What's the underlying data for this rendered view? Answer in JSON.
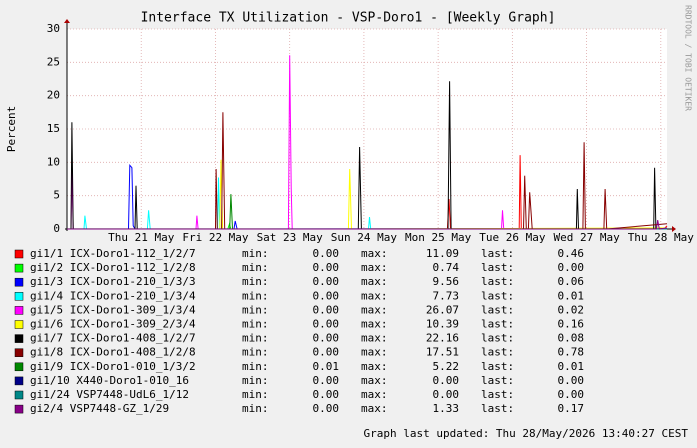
{
  "chart_data": {
    "type": "line",
    "title": "Interface TX Utilization - VSP-Doro1 - [Weekly Graph]",
    "y_label": "Percent",
    "side_label": "RRDTOOL / TOBI OETIKER",
    "footer": "Graph last updated: Thu 28/May/2026 13:40:27 CEST",
    "legend_labels": [
      "min:",
      "max:",
      "last:"
    ],
    "xlim": [
      0,
      194
    ],
    "xticks": [
      {
        "value": 24,
        "label": "Thu 21 May"
      },
      {
        "value": 48,
        "label": "Fri 22 May"
      },
      {
        "value": 72,
        "label": "Sat 23 May"
      },
      {
        "value": 96,
        "label": "Sun 24 May"
      },
      {
        "value": 120,
        "label": "Mon 25 May"
      },
      {
        "value": 144,
        "label": "Tue 26 May"
      },
      {
        "value": 168,
        "label": "Wed 27 May"
      },
      {
        "value": 192,
        "label": "Thu 28 May"
      }
    ],
    "ylim": [
      0,
      30
    ],
    "yticks": [
      0,
      5,
      10,
      15,
      20,
      25,
      30
    ],
    "grid": true,
    "series": [
      {
        "name": "gi1/1 ICX-Doro1-112_1/2/7",
        "color": "#ff0000",
        "min": "0.00",
        "max": "11.09",
        "last": "0.46",
        "x": [
          0,
          123,
          123.5,
          124,
          146.2,
          146.5,
          146.9,
          193,
          194
        ],
        "values": [
          0,
          0,
          4.5,
          0,
          0,
          11.09,
          0,
          0,
          0.46
        ]
      },
      {
        "name": "gi1/2 ICX-Doro1-112_1/2/8",
        "color": "#00ff00",
        "min": "0.00",
        "max": "0.74",
        "last": "0.00",
        "x": [
          0,
          52,
          52.5,
          53,
          194
        ],
        "values": [
          0,
          0,
          0.74,
          0,
          0
        ]
      },
      {
        "name": "gi1/3 ICX-Doro1-210_1/3/3",
        "color": "#0000ff",
        "min": "0.00",
        "max": "9.56",
        "last": "0.06",
        "x": [
          0,
          19.9,
          20.3,
          21,
          21.4,
          22,
          54,
          54.4,
          55,
          194
        ],
        "values": [
          0,
          0,
          9.56,
          9.2,
          0.5,
          0,
          0,
          1.2,
          0,
          0.06
        ]
      },
      {
        "name": "gi1/4 ICX-Doro1-210_1/3/4",
        "color": "#00ffff",
        "min": "0.00",
        "max": "7.73",
        "last": "0.01",
        "x": [
          0,
          5.5,
          5.8,
          6.3,
          26,
          26.4,
          26.9,
          48.7,
          49,
          49.4,
          97.5,
          97.8,
          98.2,
          194
        ],
        "values": [
          0,
          0,
          2,
          0,
          0,
          2.8,
          0,
          0,
          7.73,
          0,
          0,
          1.8,
          0,
          0.01
        ]
      },
      {
        "name": "gi1/5 ICX-Doro1-309_1/3/4",
        "color": "#ff00ff",
        "min": "0.00",
        "max": "26.07",
        "last": "0.02",
        "x": [
          0,
          1.3,
          1.6,
          2,
          41.7,
          42,
          42.4,
          71.6,
          72,
          72.5,
          72.8,
          73.2,
          140.5,
          140.8,
          141.2,
          194
        ],
        "values": [
          0,
          0,
          9,
          0,
          0,
          2,
          0,
          0,
          26.07,
          6.2,
          0,
          0,
          0,
          2.8,
          0,
          0.02
        ]
      },
      {
        "name": "gi1/6 ICX-Doro1-309_2/3/4",
        "color": "#ffff00",
        "min": "0.00",
        "max": "10.39",
        "last": "0.16",
        "x": [
          0,
          49.4,
          49.8,
          50.3,
          91,
          91.4,
          92,
          194
        ],
        "values": [
          0,
          0,
          10.39,
          0,
          0,
          9,
          0,
          0.16
        ]
      },
      {
        "name": "gi1/7 ICX-Doro1-408_1/2/7",
        "color": "#000000",
        "min": "0.00",
        "max": "22.16",
        "last": "0.08",
        "x": [
          0,
          1.3,
          1.6,
          2,
          22,
          22.3,
          22.7,
          94.2,
          94.6,
          95.2,
          123.2,
          123.7,
          124.2,
          164.7,
          165,
          165.4,
          189.7,
          190,
          190.4,
          194
        ],
        "values": [
          0,
          0,
          16,
          0,
          0,
          6.5,
          0,
          0,
          12.3,
          0,
          0,
          22.16,
          0,
          0,
          6,
          0,
          0,
          9.2,
          0,
          0.08
        ]
      },
      {
        "name": "gi1/8 ICX-Doro1-408_1/2/8",
        "color": "#880000",
        "min": "0.00",
        "max": "17.51",
        "last": "0.78",
        "x": [
          0,
          48,
          48.2,
          48.6,
          50,
          50.4,
          51,
          147.6,
          148,
          148.5,
          149.2,
          149.6,
          150.4,
          166.8,
          167.2,
          167.6,
          173.6,
          174,
          174.5,
          194
        ],
        "values": [
          0,
          0,
          9,
          0,
          0,
          17.51,
          0,
          0,
          8,
          0,
          0,
          5.5,
          0,
          0,
          13,
          0,
          0,
          6,
          0,
          0.78
        ]
      },
      {
        "name": "gi1/9 ICX-Doro1-010_1/3/2",
        "color": "#008800",
        "min": "0.01",
        "max": "5.22",
        "last": "0.01",
        "x": [
          0,
          52.6,
          53,
          53.5,
          194
        ],
        "values": [
          0.01,
          0.01,
          5.22,
          0.01,
          0.01
        ]
      },
      {
        "name": "gi1/10 X440-Doro1-010_16",
        "color": "#000088",
        "min": "0.00",
        "max": "0.00",
        "last": "0.00",
        "x": [
          0,
          194
        ],
        "values": [
          0,
          0
        ]
      },
      {
        "name": "gi1/24 VSP7448-UdL6_1/12",
        "color": "#008888",
        "min": "0.00",
        "max": "0.00",
        "last": "0.00",
        "x": [
          0,
          194
        ],
        "values": [
          0,
          0
        ]
      },
      {
        "name": "gi2/4 VSP7448-GZ_1/29",
        "color": "#880088",
        "min": "0.00",
        "max": "1.33",
        "last": "0.17",
        "x": [
          0,
          190.6,
          191,
          191.5,
          194
        ],
        "values": [
          0,
          0,
          1.33,
          0,
          0.17
        ]
      }
    ]
  }
}
